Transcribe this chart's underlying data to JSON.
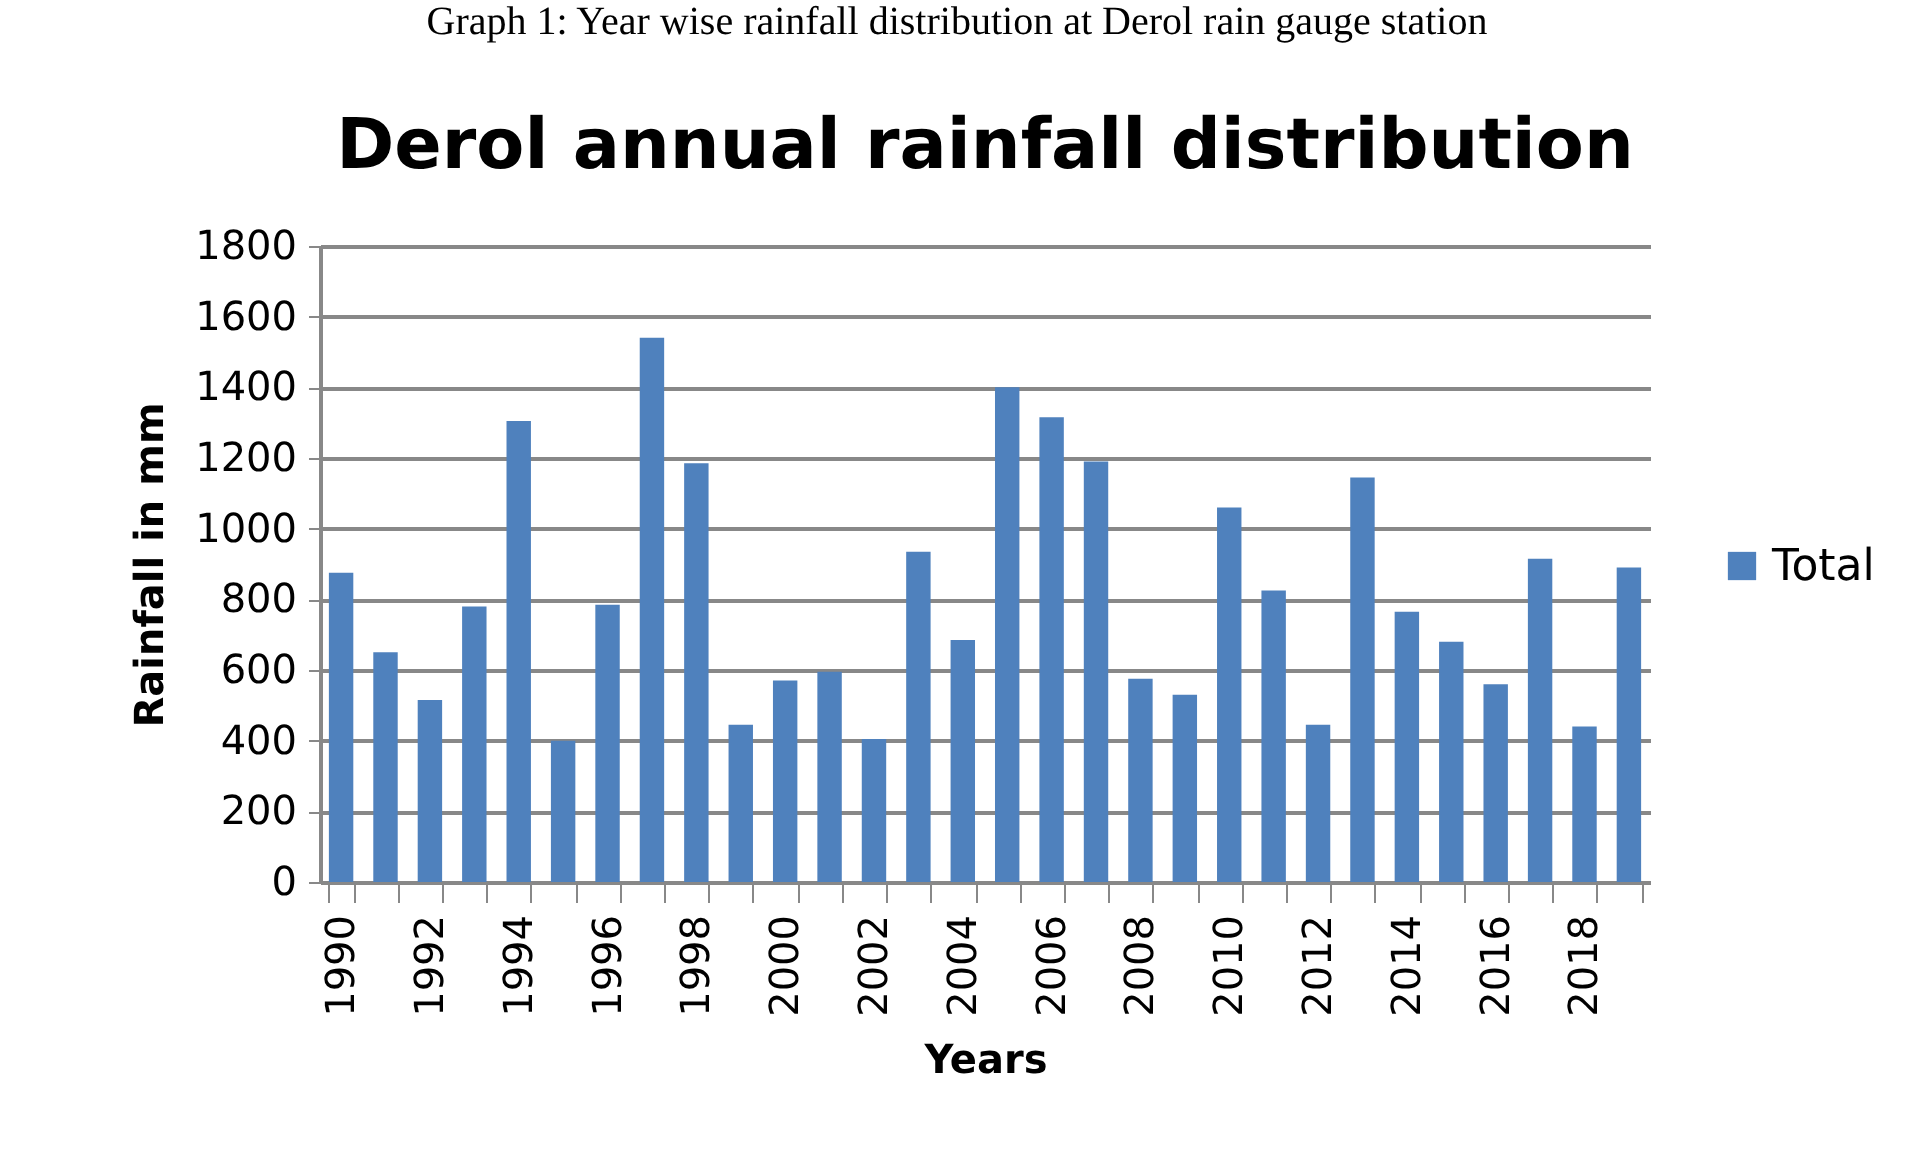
{
  "chart_data": {
    "type": "bar",
    "title": "Derol annual rainfall distribution",
    "annotations": [
      "Graph 1: Year wise rainfall distribution at Derol rain gauge station"
    ],
    "xlabel": "Years",
    "ylabel": "Rainfall in mm",
    "categories": [
      "1990",
      null,
      "1992",
      null,
      "1994",
      null,
      "1996",
      null,
      "1998",
      null,
      "2000",
      null,
      "2002",
      null,
      "2004",
      null,
      "2006",
      null,
      "2008",
      null,
      "2010",
      null,
      "2012",
      null,
      "2014",
      null,
      "2016",
      null,
      "2018",
      null
    ],
    "series": [
      {
        "name": "Total",
        "color": "#4f81bd",
        "values": [
          875,
          650,
          515,
          780,
          1305,
          400,
          785,
          1540,
          1185,
          445,
          570,
          595,
          405,
          935,
          685,
          1400,
          1315,
          1190,
          575,
          530,
          1060,
          825,
          445,
          1145,
          765,
          680,
          560,
          915,
          440,
          890
        ]
      }
    ],
    "ylim": [
      0,
      1800
    ],
    "yticks": [
      0,
      200,
      400,
      600,
      800,
      1000,
      1200,
      1400,
      1600,
      1800
    ],
    "grid": "y",
    "legend": "right"
  }
}
